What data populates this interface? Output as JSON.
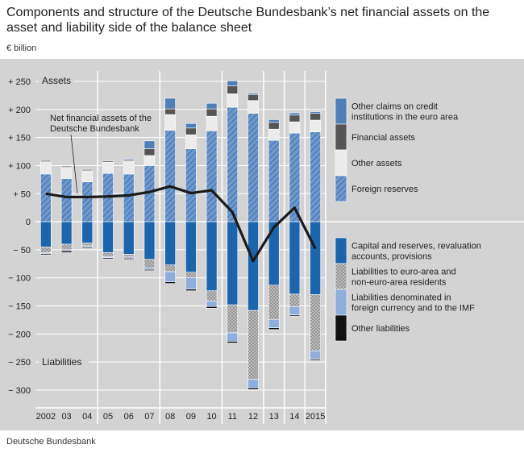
{
  "title": "Components and structure of the Deutsche Bundesbank’s net financial assets on the asset and liability side of the balance sheet",
  "unit": "€ billion",
  "source": "Deutsche Bundesbank",
  "chart_data": {
    "type": "bar",
    "stacked": true,
    "categories": [
      "2002",
      "03",
      "04",
      "05",
      "06",
      "07",
      "08",
      "09",
      "10",
      "11",
      "12",
      "13",
      "14",
      "2015"
    ],
    "ylim": [
      -300,
      250
    ],
    "yticks": [
      250,
      200,
      150,
      100,
      50,
      0,
      -50,
      -100,
      -150,
      -200,
      -250,
      -300
    ],
    "ytick_labels": [
      "+ 250",
      "+ 200",
      "+ 150",
      "+ 100",
      "+ 50",
      "0",
      "− 50",
      "− 100",
      "− 150",
      "− 200",
      "− 250",
      "− 300"
    ],
    "section_labels": {
      "assets": "Assets",
      "liabilities": "Liabilities"
    },
    "asset_series": [
      {
        "name": "Foreign reserves",
        "color": "#4f81bd",
        "pattern": "hatch",
        "values": [
          85,
          77,
          71,
          86,
          85,
          100,
          163,
          130,
          162,
          204,
          193,
          145,
          158,
          160
        ]
      },
      {
        "name": "Other assets",
        "color": "#ececec",
        "values": [
          22,
          20,
          20,
          20,
          23,
          18,
          28,
          25,
          26,
          24,
          23,
          20,
          20,
          21
        ]
      },
      {
        "name": "Financial assets",
        "color": "#555555",
        "values": [
          2,
          2,
          2,
          2,
          2,
          12,
          10,
          12,
          13,
          14,
          10,
          12,
          12,
          12
        ]
      },
      {
        "name": "Other claims on credit institutions in the euro area",
        "color": "#4f7fb6",
        "values": [
          0,
          0,
          0,
          0,
          2,
          14,
          19,
          8,
          10,
          9,
          3,
          5,
          4,
          3
        ]
      }
    ],
    "liability_series": [
      {
        "name": "Capital and reserves, revaluation accounts, provisions",
        "color": "#1c64ac",
        "values": [
          -45,
          -40,
          -38,
          -55,
          -58,
          -67,
          -77,
          -90,
          -123,
          -148,
          -158,
          -113,
          -129,
          -130
        ]
      },
      {
        "name": "Liabilities to euro-area and non-euro-area residents",
        "color": "#bdbdbd",
        "pattern": "crosshatch",
        "values": [
          -10,
          -10,
          -5,
          -7,
          -5,
          -15,
          -12,
          -10,
          -18,
          -50,
          -123,
          -61,
          -22,
          -100
        ]
      },
      {
        "name": "Liabilities denominated in foreign currency and to the IMF",
        "color": "#8faedb",
        "values": [
          -2,
          -2,
          -2,
          -2,
          -2,
          -3,
          -18,
          -20,
          -10,
          -15,
          -15,
          -15,
          -15,
          -15
        ]
      },
      {
        "name": "Other liabilities",
        "color": "#111111",
        "values": [
          -2,
          -3,
          -2,
          -2,
          -2,
          -2,
          -3,
          -3,
          -3,
          -3,
          -3,
          -3,
          -2,
          -2
        ]
      }
    ],
    "line_series": {
      "name": "Net financial assets of the Deutsche Bundesbank",
      "color": "#1a1a1a",
      "values": [
        50,
        44,
        44,
        45,
        47,
        53,
        63,
        51,
        56,
        17,
        -70,
        -10,
        25,
        -48
      ]
    },
    "legend": {
      "assets": [
        "Other claims on credit institutions in the euro area",
        "Financial assets",
        "Other assets",
        "Foreign reserves"
      ],
      "liabilities": [
        "Capital and reserves, revaluation accounts, provisions",
        "Liabilities to euro-area and non-euro-area residents",
        "Liabilities denominated in foreign currency and to the IMF",
        "Other liabilities"
      ]
    },
    "grid": true
  }
}
